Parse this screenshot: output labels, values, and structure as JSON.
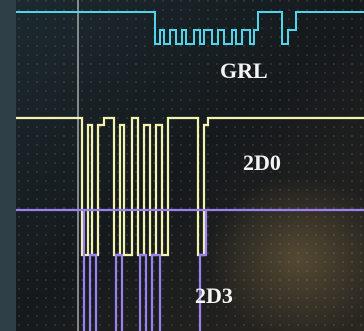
{
  "labels": [
    "GRL",
    "2D0",
    "2D3"
  ]
}
